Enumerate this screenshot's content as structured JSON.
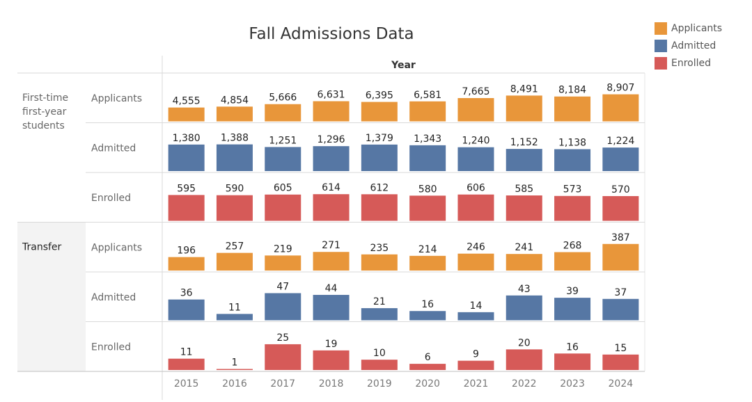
{
  "chart_data": {
    "type": "bar",
    "title": "Fall Admissions Data",
    "column_header": "Year",
    "categories": [
      "2015",
      "2016",
      "2017",
      "2018",
      "2019",
      "2020",
      "2021",
      "2022",
      "2023",
      "2024"
    ],
    "groups": [
      {
        "label": "First-time\nfirst-year\nstudents",
        "rows": [
          {
            "label": "Applicants",
            "series": "Applicants",
            "values": [
              4555,
              4854,
              5666,
              6631,
              6395,
              6581,
              7665,
              8491,
              8184,
              8907
            ],
            "ylim": [
              0,
              9500
            ]
          },
          {
            "label": "Admitted",
            "series": "Admitted",
            "values": [
              1380,
              1388,
              1251,
              1296,
              1379,
              1343,
              1240,
              1152,
              1138,
              1224
            ],
            "ylim": [
              0,
              1500
            ]
          },
          {
            "label": "Enrolled",
            "series": "Enrolled",
            "values": [
              595,
              590,
              605,
              614,
              612,
              580,
              606,
              585,
              573,
              570
            ],
            "ylim": [
              0,
              665
            ]
          }
        ]
      },
      {
        "label": "Transfer",
        "rows": [
          {
            "label": "Applicants",
            "series": "Applicants",
            "values": [
              196,
              257,
              219,
              271,
              235,
              214,
              246,
              241,
              268,
              387
            ],
            "ylim": [
              0,
              420
            ]
          },
          {
            "label": "Admitted",
            "series": "Admitted",
            "values": [
              36,
              11,
              47,
              44,
              21,
              16,
              14,
              43,
              39,
              37
            ],
            "ylim": [
              0,
              50
            ]
          },
          {
            "label": "Enrolled",
            "series": "Enrolled",
            "values": [
              11,
              1,
              25,
              19,
              10,
              6,
              9,
              20,
              16,
              15
            ],
            "ylim": [
              0,
              28
            ]
          }
        ]
      }
    ],
    "legend": {
      "position": "top-right",
      "items": [
        {
          "name": "Applicants",
          "color": "#E8963A"
        },
        {
          "name": "Admitted",
          "color": "#5677A4"
        },
        {
          "name": "Enrolled",
          "color": "#D65A58"
        }
      ]
    }
  }
}
